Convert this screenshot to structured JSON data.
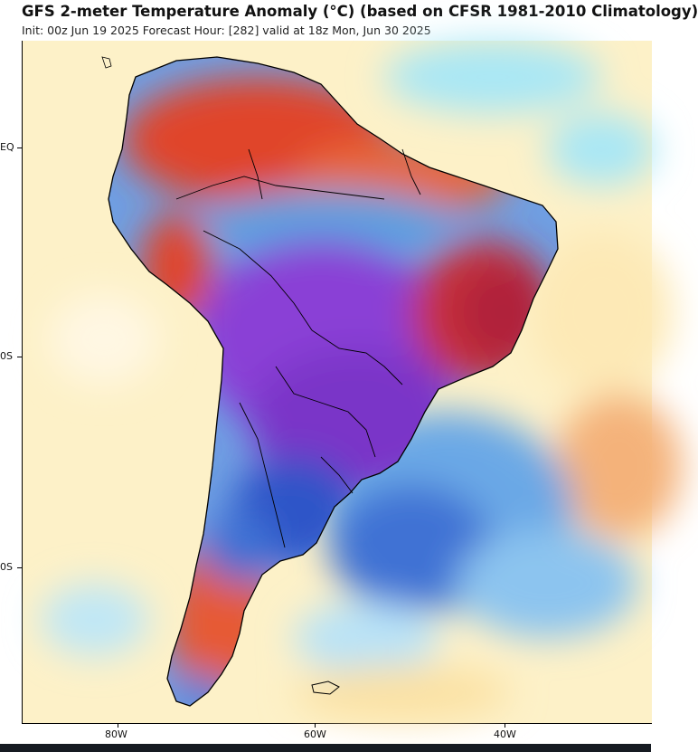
{
  "header": {
    "title": "GFS 2-meter Temperature Anomaly (°C) (based on CFSR 1981-2010 Climatology)",
    "subtitle": "Init: 00z Jun 19 2025   Forecast Hour: [282]   valid at 18z Mon, Jun 30 2025"
  },
  "axes": {
    "y_ticks": [
      "EQ",
      "0S",
      "0S"
    ],
    "x_ticks": [
      "80W",
      "60W",
      "40W"
    ]
  },
  "colors": {
    "ocean_neutral": "#fdf1c8",
    "warm": "#e0442b",
    "hot": "#b0203a",
    "cool": "#5aa0e0",
    "cold": "#2f55c8",
    "very_cold": "#8a3fd6",
    "coast_line": "#000000"
  }
}
